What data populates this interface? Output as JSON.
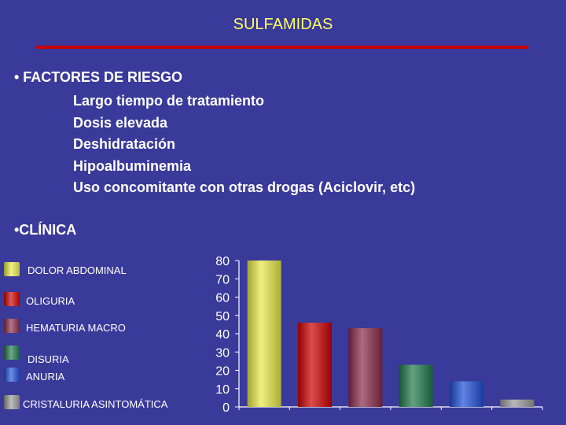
{
  "title": "SULFAMIDAS",
  "risk": {
    "heading": "• FACTORES DE RIESGO",
    "items": [
      "Largo tiempo de tratamiento",
      "Dosis elevada",
      "Deshidratación",
      "Hipoalbuminemia",
      "Uso concomitante con otras drogas (Aciclovir, etc)"
    ]
  },
  "clinica": {
    "heading": "•CLÍNICA"
  },
  "legend": [
    {
      "label": "DOLOR ABDOMINAL",
      "color": "#e8e84a"
    },
    {
      "label": "OLIGURIA",
      "color": "#cc0000"
    },
    {
      "label": "HEMATURIA MACRO",
      "color": "#8a2a4a"
    },
    {
      "label": "DISURIA",
      "color": "#1f7a4a"
    },
    {
      "label": "ANURIA",
      "color": "#1f4fd6"
    },
    {
      "label": "CRISTALURIA ASINTOMÁTICA",
      "color": "#9a9a9a"
    }
  ],
  "chart_data": {
    "type": "bar",
    "categories": [
      "DOLOR ABDOMINAL",
      "OLIGURIA",
      "HEMATURIA MACRO",
      "DISURIA",
      "ANURIA",
      "CRISTALURIA ASINTOMÁTICA"
    ],
    "values": [
      80,
      46,
      43,
      23,
      14,
      4
    ],
    "colors": [
      "#e8e84a",
      "#cc0000",
      "#8a2a4a",
      "#1f7a4a",
      "#1f4fd6",
      "#9a9a9a"
    ],
    "ylim": [
      0,
      80
    ],
    "yticks": [
      0,
      10,
      20,
      30,
      40,
      50,
      60,
      70,
      80
    ],
    "title": "",
    "xlabel": "",
    "ylabel": "",
    "grid": false,
    "legend": "left"
  }
}
